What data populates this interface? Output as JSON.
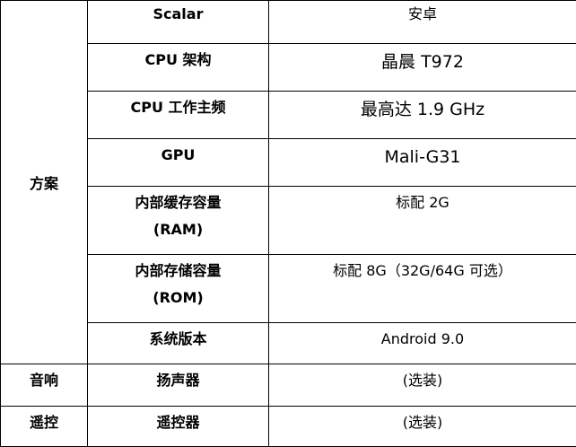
{
  "table": {
    "groups": [
      {
        "category": "方案"
      },
      {
        "category": "音响"
      },
      {
        "category": "遥控"
      }
    ],
    "rows": [
      {
        "label": "Scalar",
        "value": "安卓"
      },
      {
        "label": "CPU 架构",
        "value": "晶晨 T972"
      },
      {
        "label": "CPU 工作主频",
        "value": "最高达 1.9 GHz"
      },
      {
        "label": "GPU",
        "value": "Mali-G31"
      },
      {
        "label": "内部缓存容量",
        "label2": "(RAM)",
        "value": "标配 2G"
      },
      {
        "label": "内部存储容量",
        "label2": "(ROM)",
        "value": "标配 8G（32G/64G 可选）"
      },
      {
        "label": "系统版本",
        "value": "Android 9.0"
      },
      {
        "label": "扬声器",
        "value": "(选装)"
      },
      {
        "label": "遥控器",
        "value": "(选装)"
      }
    ]
  }
}
